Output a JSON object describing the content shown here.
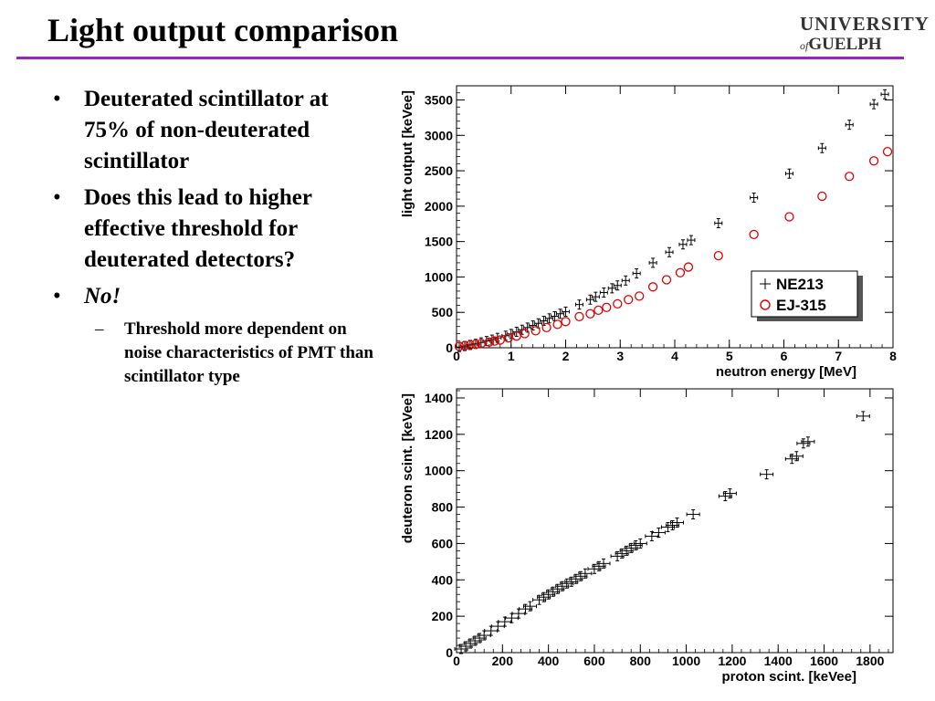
{
  "slide": {
    "title": "Light output comparison",
    "logo": {
      "line1": "UNIVERSITY",
      "prefix": "of",
      "line2": "GUELPH"
    },
    "bullets": [
      "Deuterated scintillator at 75% of non-deuterated scintillator",
      "Does this lead to higher effective threshold for deuterated detectors?",
      "No!"
    ],
    "sub_bullets": [
      "Threshold more dependent on noise characteristics of PMT than scintillator type"
    ]
  },
  "colors": {
    "accent_rule": "#a020c0",
    "series_ne213": "#000000",
    "series_ej315": "#e00000"
  },
  "chart_data": [
    {
      "type": "scatter",
      "xlabel": "neutron energy [MeV]",
      "ylabel": "light output [keVee]",
      "xlim": [
        0,
        8
      ],
      "ylim": [
        0,
        3700
      ],
      "xticks": [
        0,
        1,
        2,
        3,
        4,
        5,
        6,
        7,
        8
      ],
      "yticks": [
        0,
        500,
        1000,
        1500,
        2000,
        2500,
        3000,
        3500
      ],
      "legend_position": "right",
      "series": [
        {
          "name": "NE213",
          "marker": "cross",
          "x": [
            0.05,
            0.15,
            0.25,
            0.35,
            0.45,
            0.55,
            0.65,
            0.75,
            0.9,
            1.0,
            1.1,
            1.2,
            1.3,
            1.4,
            1.5,
            1.6,
            1.7,
            1.8,
            1.9,
            2.0,
            2.25,
            2.45,
            2.55,
            2.7,
            2.85,
            2.95,
            3.1,
            3.3,
            3.6,
            3.9,
            4.15,
            4.3,
            4.8,
            5.45,
            6.1,
            6.7,
            7.2,
            7.65,
            7.85
          ],
          "y": [
            10,
            25,
            40,
            55,
            75,
            95,
            115,
            140,
            170,
            195,
            225,
            255,
            285,
            315,
            345,
            380,
            415,
            445,
            480,
            510,
            610,
            680,
            720,
            780,
            840,
            880,
            950,
            1050,
            1200,
            1350,
            1460,
            1520,
            1760,
            2120,
            2460,
            2820,
            3150,
            3440,
            3580
          ]
        },
        {
          "name": "EJ-315",
          "marker": "circle",
          "x": [
            0.05,
            0.15,
            0.25,
            0.35,
            0.45,
            0.6,
            0.7,
            0.8,
            0.95,
            1.1,
            1.25,
            1.45,
            1.65,
            1.85,
            2.0,
            2.25,
            2.45,
            2.6,
            2.75,
            2.95,
            3.15,
            3.35,
            3.6,
            3.85,
            4.1,
            4.25,
            4.8,
            5.45,
            6.1,
            6.7,
            7.2,
            7.65,
            7.9
          ],
          "y": [
            20,
            30,
            40,
            50,
            60,
            80,
            95,
            110,
            140,
            165,
            200,
            240,
            285,
            330,
            370,
            440,
            480,
            530,
            570,
            620,
            680,
            730,
            860,
            960,
            1060,
            1140,
            1300,
            1600,
            1850,
            2140,
            2420,
            2640,
            2770
          ]
        }
      ]
    },
    {
      "type": "scatter",
      "xlabel": "proton scint. [keVee]",
      "ylabel": "deuteron scint. [keVee]",
      "xlim": [
        0,
        1900
      ],
      "ylim": [
        0,
        1450
      ],
      "xticks": [
        0,
        200,
        400,
        600,
        800,
        1000,
        1200,
        1400,
        1600,
        1800
      ],
      "yticks": [
        0,
        200,
        400,
        600,
        800,
        1000,
        1200,
        1400
      ],
      "series": [
        {
          "name": "",
          "marker": "cross",
          "x": [
            20,
            40,
            60,
            80,
            100,
            120,
            150,
            180,
            210,
            240,
            270,
            300,
            320,
            360,
            380,
            400,
            420,
            440,
            460,
            480,
            500,
            520,
            540,
            560,
            600,
            620,
            640,
            700,
            720,
            740,
            760,
            780,
            800,
            850,
            880,
            920,
            940,
            960,
            1030,
            1170,
            1190,
            1350,
            1460,
            1480,
            1510,
            1530,
            1770
          ],
          "y": [
            20,
            35,
            50,
            65,
            80,
            95,
            120,
            145,
            170,
            190,
            215,
            240,
            255,
            290,
            305,
            320,
            335,
            350,
            365,
            380,
            390,
            405,
            420,
            435,
            460,
            475,
            490,
            530,
            545,
            560,
            575,
            590,
            600,
            640,
            660,
            690,
            700,
            715,
            760,
            860,
            875,
            980,
            1065,
            1080,
            1150,
            1160,
            1300
          ]
        }
      ]
    }
  ]
}
